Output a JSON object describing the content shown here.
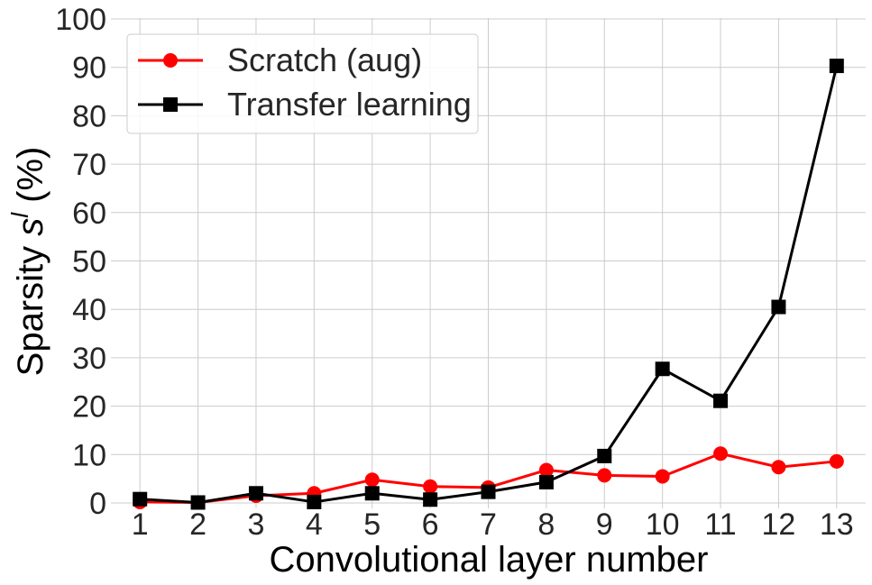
{
  "chart_data": {
    "type": "line",
    "title": "",
    "xlabel": "Convolutional layer number",
    "ylabel": {
      "prefix": "Sparsity ",
      "symbol": "s",
      "superscript": "l",
      "suffix": " (%)"
    },
    "x": [
      1,
      2,
      3,
      4,
      5,
      6,
      7,
      8,
      9,
      10,
      11,
      12,
      13
    ],
    "xlim": [
      0.5,
      13.5
    ],
    "ylim": [
      0,
      100
    ],
    "yticks": [
      0,
      10,
      20,
      30,
      40,
      50,
      60,
      70,
      80,
      90,
      100
    ],
    "grid": true,
    "legend_position": "top-left",
    "series": [
      {
        "name": "Scratch (aug)",
        "color": "#ff0000",
        "marker": "circle",
        "values": [
          0.2,
          0.1,
          1.5,
          2.0,
          4.8,
          3.4,
          3.2,
          6.8,
          5.7,
          5.5,
          10.2,
          7.4,
          8.6
        ]
      },
      {
        "name": "Transfer learning",
        "color": "#000000",
        "marker": "square",
        "values": [
          0.8,
          0.1,
          2.0,
          0.2,
          2.0,
          0.7,
          2.3,
          4.3,
          9.7,
          27.7,
          21.1,
          40.5,
          90.3
        ]
      }
    ]
  }
}
